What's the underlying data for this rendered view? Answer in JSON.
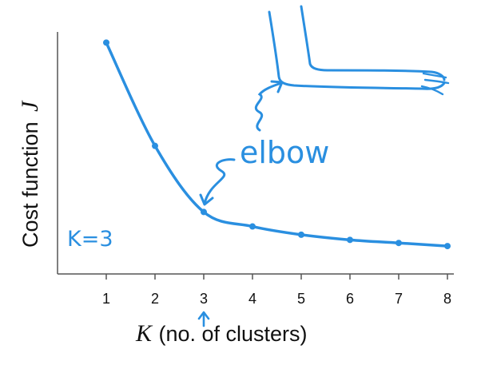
{
  "chart_data": {
    "type": "line",
    "title": "",
    "x": [
      1,
      2,
      3,
      4,
      5,
      6,
      7,
      8
    ],
    "values": [
      100,
      50,
      18,
      11,
      7,
      4.5,
      3,
      1.5
    ],
    "xlim": [
      0,
      8
    ],
    "ylim": [
      -12,
      104
    ],
    "x_ticks": [
      "1",
      "2",
      "3",
      "4",
      "5",
      "6",
      "7",
      "8"
    ],
    "xlabel_var": "K",
    "xlabel_text": "(no. of clusters)",
    "ylabel_text": "Cost function",
    "ylabel_var": "J",
    "y_ticks_shown": false,
    "grid": false,
    "annotations": {
      "elbow_label": "elbow",
      "k_label": "K=3",
      "elbow_x": 3
    },
    "colors": {
      "series": "#2a8fe0",
      "axis": "#555555",
      "text": "#111111"
    }
  }
}
